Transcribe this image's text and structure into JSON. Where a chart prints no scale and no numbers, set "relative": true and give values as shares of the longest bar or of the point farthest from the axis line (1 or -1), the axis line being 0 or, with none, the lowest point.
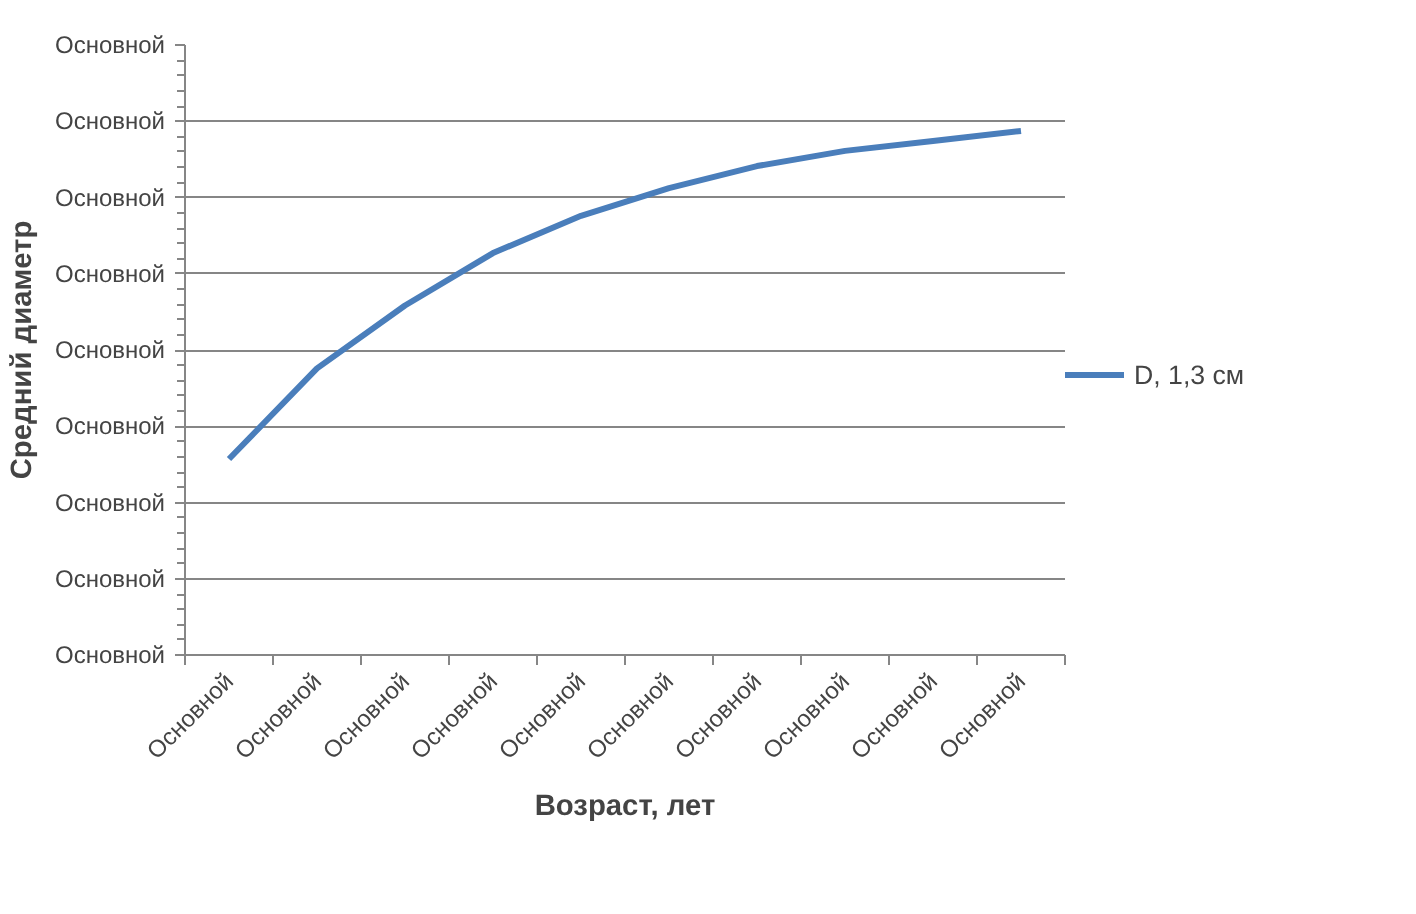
{
  "chart_data": {
    "type": "line",
    "xlabel": "Возраст, лет",
    "ylabel": "Средний диаметр",
    "relative": true,
    "categories": [
      "Основной",
      "Основной",
      "Основной",
      "Основной",
      "Основной",
      "Основной",
      "Основной",
      "Основной",
      "Основной",
      "Основной"
    ],
    "series": [
      {
        "name": "D, 1,3 см",
        "color": "#4a7ebb",
        "values": [
          0.374,
          0.547,
          0.667,
          0.767,
          0.838,
          0.891,
          0.933,
          0.962,
          0.981,
          1
        ]
      }
    ],
    "annotations": [
      "Основной",
      "Основной",
      "Основной",
      "Основной",
      "Основной",
      "Основной",
      "Основной",
      "Основной",
      "Основной"
    ],
    "grid": "y",
    "legend": "right",
    "line_style": "solid"
  }
}
